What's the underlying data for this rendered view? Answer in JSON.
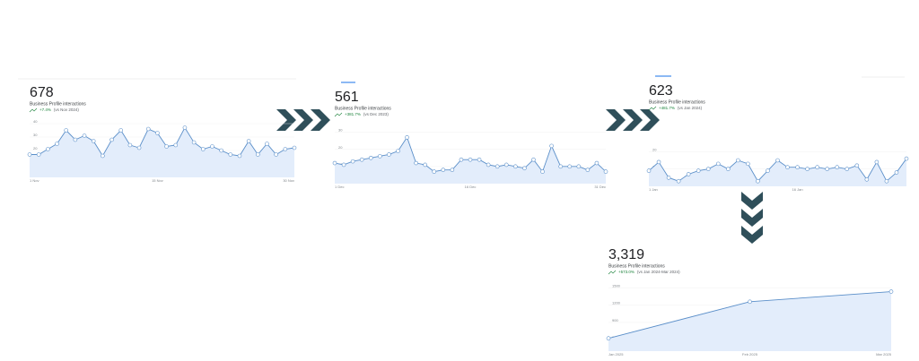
{
  "chart_data": [
    {
      "type": "line",
      "metric": "678",
      "metric_label": "Business Profile interactions",
      "change": "+7.4%",
      "comparison": "(vs Nov 2024)",
      "categories": [
        "1 Nov",
        null,
        null,
        null,
        null,
        null,
        null,
        null,
        null,
        null,
        null,
        null,
        null,
        null,
        "15 Nov",
        null,
        null,
        null,
        null,
        null,
        null,
        null,
        null,
        null,
        null,
        null,
        null,
        null,
        null,
        "30 Nov"
      ],
      "values": [
        17,
        17,
        21,
        25,
        35,
        28,
        31,
        27,
        16,
        28,
        35,
        24,
        22,
        36,
        33,
        23,
        24,
        37,
        26,
        21,
        23,
        20,
        17,
        16,
        27,
        17,
        25,
        17,
        21,
        22
      ],
      "color": "#5b8fc9",
      "ylim": [
        0,
        40
      ],
      "yticks": [
        10,
        20,
        30,
        40
      ]
    },
    {
      "type": "line",
      "metric": "561",
      "metric_label": "Business Profile interactions",
      "change": "+381.7%",
      "comparison": "(vs Dec 2023)",
      "categories": [
        "1 Dec",
        null,
        null,
        null,
        null,
        null,
        null,
        null,
        null,
        null,
        null,
        null,
        null,
        null,
        null,
        "16 Dec",
        null,
        null,
        null,
        null,
        null,
        null,
        null,
        null,
        null,
        null,
        null,
        null,
        null,
        null,
        "31 Dec"
      ],
      "values": [
        12,
        11,
        13,
        14,
        15,
        16,
        17,
        19,
        27,
        12,
        11,
        7,
        8,
        8,
        14,
        14,
        14,
        11,
        10,
        11,
        10,
        9,
        14,
        7,
        22,
        10,
        10,
        10,
        8,
        12,
        7
      ],
      "color": "#5b8fc9",
      "ylim": [
        0,
        35
      ],
      "yticks": [
        10,
        20,
        30
      ]
    },
    {
      "type": "line",
      "metric": "623",
      "metric_label": "Business Profile interactions",
      "change": "+481.7%",
      "comparison": "(vs Jan 2024)",
      "categories": [
        "1 Jan",
        null,
        null,
        null,
        null,
        null,
        null,
        null,
        null,
        null,
        null,
        null,
        null,
        null,
        null,
        "16 Jan",
        null,
        null,
        null,
        null,
        null,
        null,
        null,
        null,
        null,
        null,
        null
      ],
      "values": [
        9,
        14,
        5,
        3,
        7,
        9,
        10,
        13,
        10,
        15,
        13,
        3,
        9,
        15,
        11,
        11,
        10,
        11,
        10,
        11,
        10,
        12,
        4,
        14,
        3,
        8,
        16
      ],
      "color": "#5b8fc9",
      "ylim": [
        0,
        30
      ],
      "yticks": [
        10,
        20
      ]
    },
    {
      "type": "line",
      "metric": "3,319",
      "metric_label": "Business Profile interactions",
      "change": "+573.0%",
      "comparison": "(vs Jan 2024-Mar 2024)",
      "categories": [
        "Jan 2025",
        "Feb 2025",
        "Mar 2025"
      ],
      "values": [
        623,
        1260,
        1436
      ],
      "color": "#5b8fc9",
      "ylim": [
        400,
        1600
      ],
      "yticks": [
        600,
        900,
        1200,
        1500
      ]
    }
  ]
}
